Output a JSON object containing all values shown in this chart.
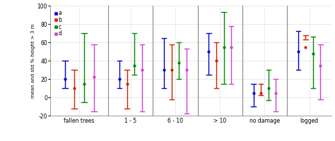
{
  "groups": [
    "fallen trees",
    "1 - 5",
    "6 - 10",
    "> 10",
    "no damage",
    "logged"
  ],
  "colors": {
    "a": "#0000CC",
    "b": "#CC2200",
    "c": "#008800",
    "d": "#CC44CC"
  },
  "series": {
    "a": {
      "means": [
        20,
        20,
        30,
        50,
        5,
        50
      ],
      "lows": [
        10,
        10,
        10,
        25,
        -10,
        30
      ],
      "highs": [
        40,
        40,
        65,
        70,
        15,
        72
      ]
    },
    "b": {
      "means": [
        10,
        15,
        30,
        40,
        5,
        55
      ],
      "lows": [
        -12,
        -12,
        -2,
        10,
        2,
        63
      ],
      "highs": [
        30,
        30,
        58,
        60,
        15,
        68
      ]
    },
    "c": {
      "means": [
        15,
        35,
        38,
        55,
        10,
        48
      ],
      "lows": [
        -5,
        25,
        20,
        15,
        -3,
        10
      ],
      "highs": [
        70,
        70,
        60,
        93,
        30,
        66
      ]
    },
    "d": {
      "means": [
        22,
        30,
        30,
        55,
        5,
        35
      ],
      "lows": [
        -15,
        -15,
        -18,
        15,
        -15,
        -2
      ],
      "highs": [
        58,
        58,
        53,
        78,
        20,
        58
      ]
    }
  },
  "ylim": [
    -20,
    100
  ],
  "yticks": [
    -20,
    0,
    20,
    40,
    60,
    80,
    100
  ],
  "ylabel": "mean and std % height > 3 m",
  "offsets": [
    -0.3,
    -0.1,
    0.1,
    0.3
  ],
  "bg_color": "#FFFFFF",
  "width_ratios": [
    1.3,
    1.0,
    1.0,
    1.0,
    1.0,
    1.0
  ]
}
